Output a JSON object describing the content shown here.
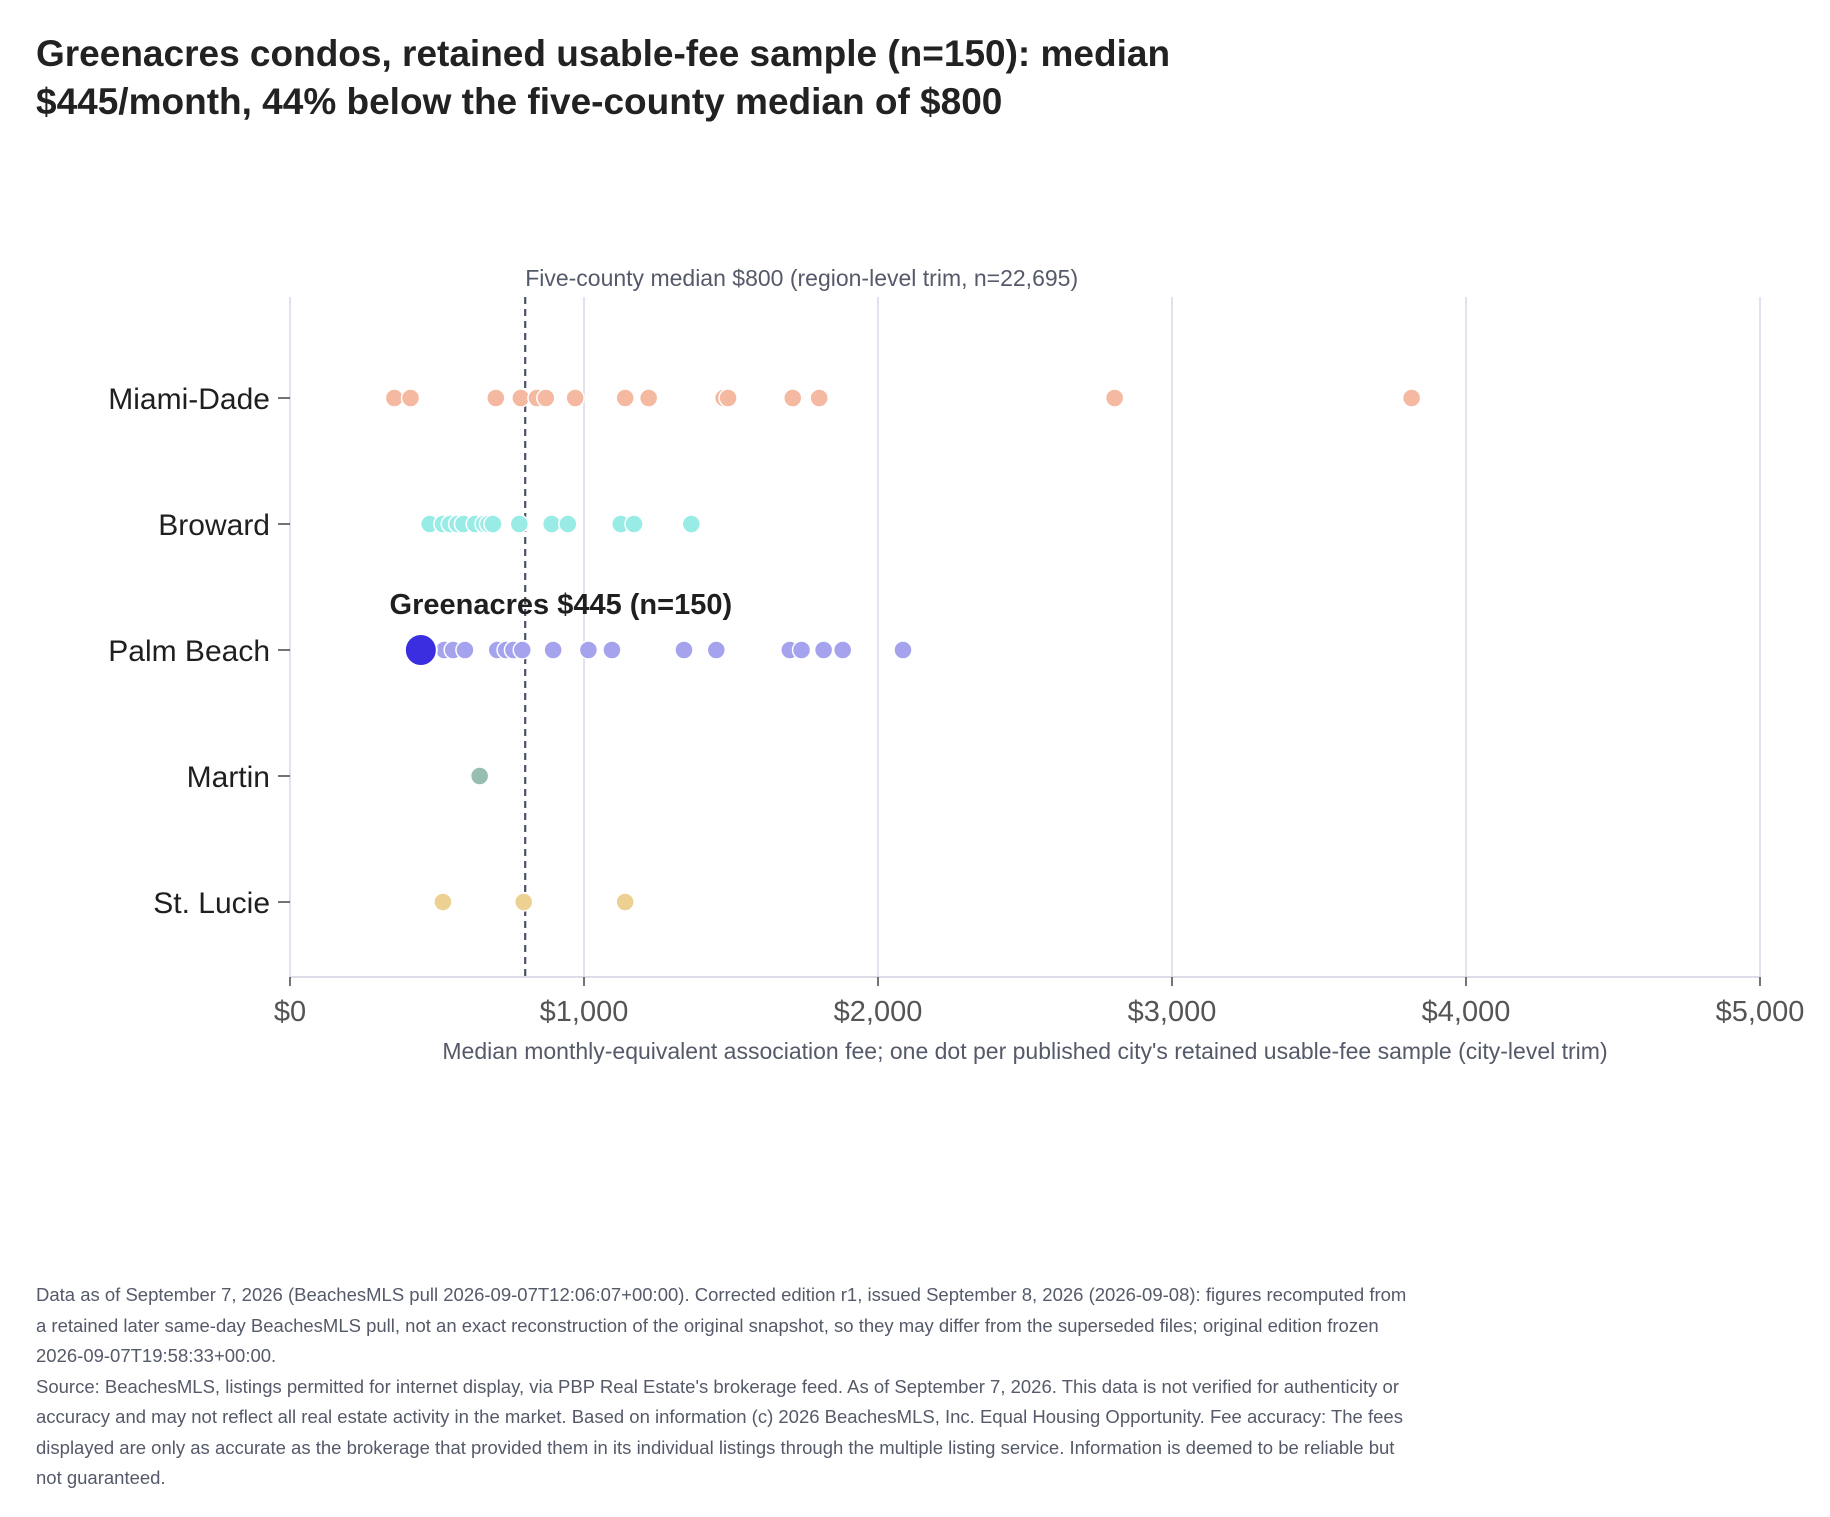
{
  "title_lines": [
    "Greenacres condos, retained usable-fee sample (n=150): median",
    "$445/month, 44% below the five-county median of $800"
  ],
  "chart_data": {
    "type": "strip",
    "xlabel": "Median monthly-equivalent association fee; one dot per published city's retained usable-fee sample (city-level trim)",
    "xlim": [
      0,
      5000
    ],
    "x_ticks": [
      0,
      1000,
      2000,
      3000,
      4000,
      5000
    ],
    "x_tick_labels": [
      "$0",
      "$1,000",
      "$2,000",
      "$3,000",
      "$4,000",
      "$5,000"
    ],
    "grid": "vertical",
    "categories": [
      "Miami-Dade",
      "Broward",
      "Palm Beach",
      "Martin",
      "St. Lucie"
    ],
    "colors": {
      "Miami-Dade": "#f4b9a0",
      "Broward": "#99ece6",
      "Palm Beach": "#a5a2ee",
      "Martin": "#96bfb0",
      "St. Lucie": "#ecd193",
      "highlight": "#3a2ee0",
      "reference_line": "#4b5365"
    },
    "series": [
      {
        "county": "Miami-Dade",
        "values": [
          355,
          410,
          700,
          785,
          840,
          870,
          970,
          1140,
          1220,
          1475,
          1490,
          1710,
          1800,
          2805,
          3815
        ]
      },
      {
        "county": "Broward",
        "values": [
          475,
          520,
          545,
          570,
          590,
          630,
          660,
          675,
          690,
          780,
          890,
          945,
          1125,
          1170,
          1365
        ]
      },
      {
        "county": "Palm Beach",
        "values": [
          445,
          525,
          555,
          595,
          705,
          735,
          760,
          790,
          895,
          1015,
          1095,
          1340,
          1450,
          1700,
          1740,
          1815,
          1880,
          2085
        ]
      },
      {
        "county": "Martin",
        "values": [
          645
        ]
      },
      {
        "county": "St. Lucie",
        "values": [
          520,
          795,
          1140
        ]
      }
    ],
    "highlight": {
      "county": "Palm Beach",
      "value": 445,
      "label": "Greenacres $445 (n=150)"
    },
    "reference_line": {
      "value": 800,
      "label": "Five-county median $800 (region-level trim, n=22,695)"
    }
  },
  "footnotes": [
    "Data as of September 7, 2026 (BeachesMLS pull 2026-09-07T12:06:07+00:00). Corrected edition r1, issued September 8, 2026 (2026-09-08): figures recomputed from a retained later same-day BeachesMLS pull, not an exact reconstruction of the original snapshot, so they may differ from the superseded files; original edition frozen 2026-09-07T19:58:33+00:00.",
    "Source: BeachesMLS, listings permitted for internet display, via PBP Real Estate's brokerage feed. As of September 7, 2026. This data is not verified for authenticity or accuracy and may not reflect all real estate activity in the market. Based on information (c) 2026 BeachesMLS, Inc. Equal Housing Opportunity. Fee accuracy: The fees displayed are only as accurate as the brokerage that provided them in its individual listings through the multiple listing service. Information is deemed to be reliable but not guaranteed."
  ]
}
